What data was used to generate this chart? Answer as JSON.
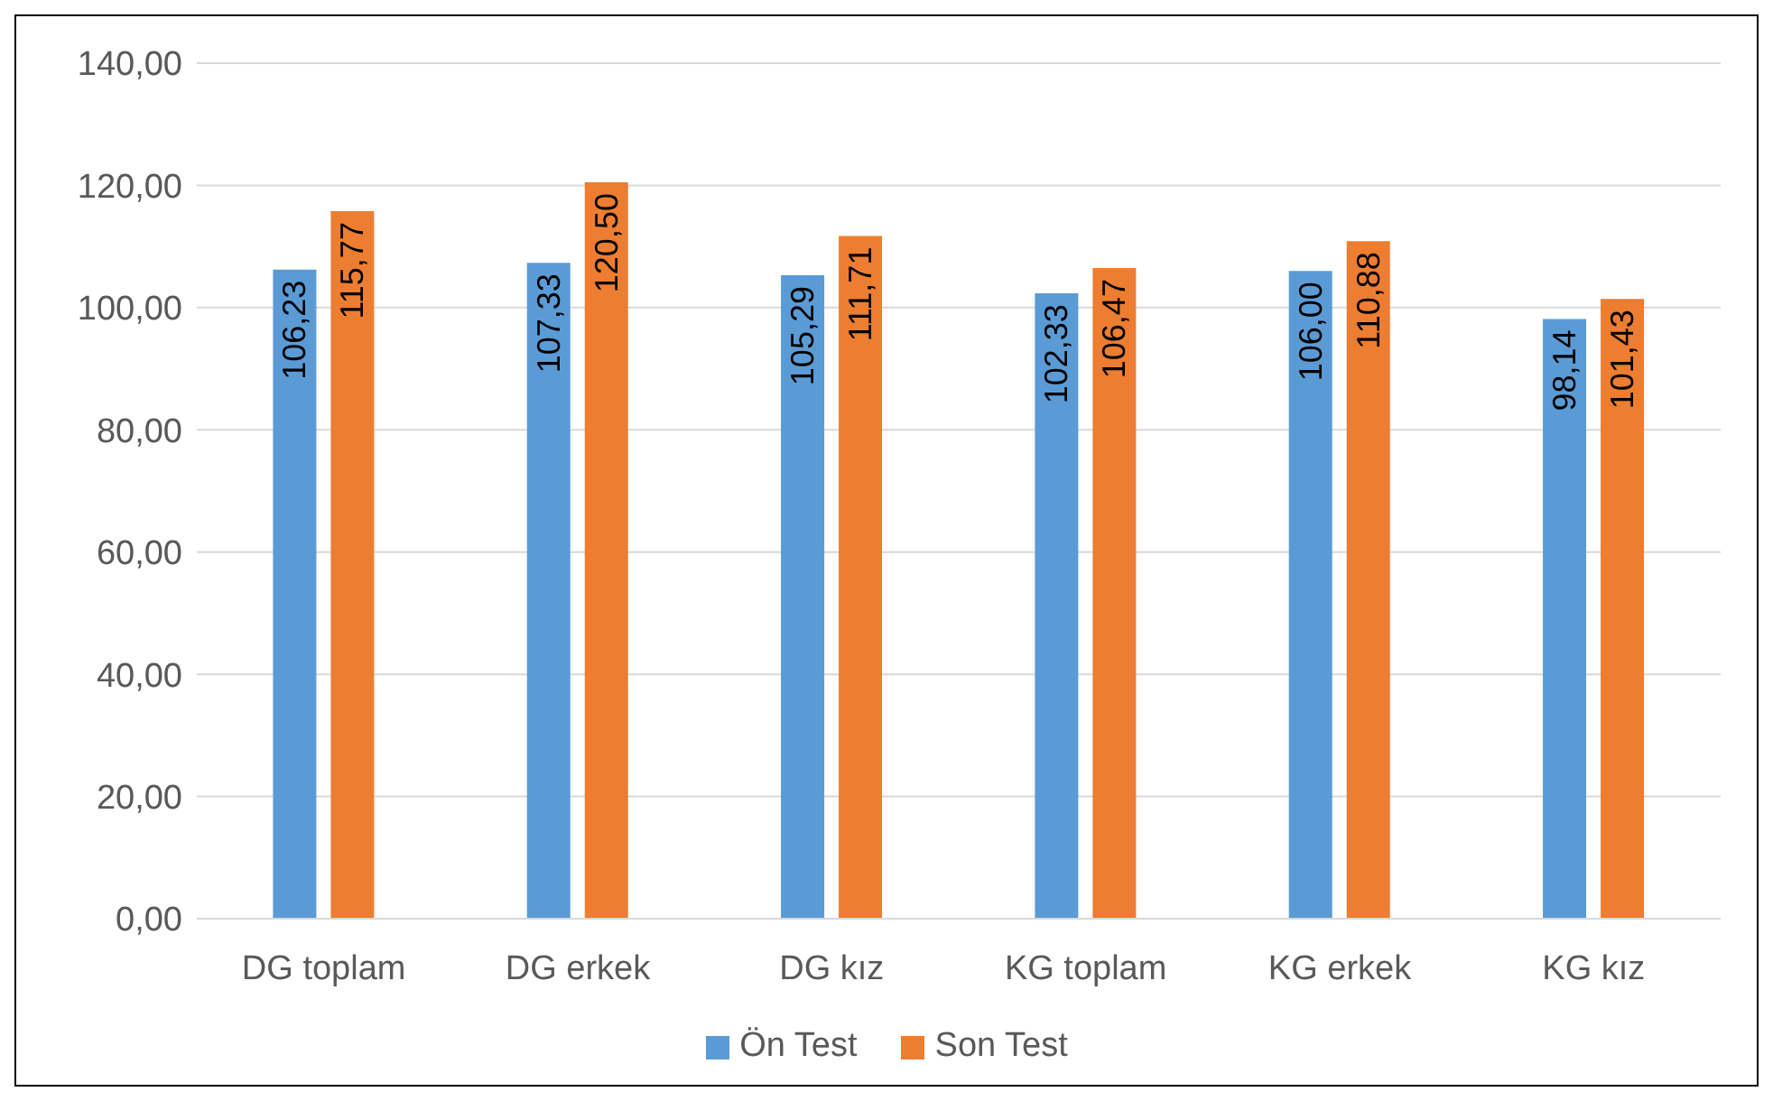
{
  "chart_data": {
    "type": "bar",
    "categories": [
      "DG toplam",
      "DG erkek",
      "DG kız",
      "KG toplam",
      "KG erkek",
      "KG kız"
    ],
    "series": [
      {
        "name": "Ön Test",
        "color": "#5b9bd5",
        "values": [
          106.23,
          107.33,
          105.29,
          102.33,
          106.0,
          98.14
        ],
        "value_labels": [
          "106,23",
          "107,33",
          "105,29",
          "102,33",
          "106,00",
          "98,14"
        ]
      },
      {
        "name": "Son Test",
        "color": "#ed7d31",
        "values": [
          115.77,
          120.5,
          111.71,
          106.47,
          110.88,
          101.43
        ],
        "value_labels": [
          "115,77",
          "120,50",
          "111,71",
          "106,47",
          "110,88",
          "101,43"
        ]
      }
    ],
    "ylim": [
      0,
      140
    ],
    "yticks": [
      {
        "value": 0,
        "label": "0,00"
      },
      {
        "value": 20,
        "label": "20,00"
      },
      {
        "value": 40,
        "label": "40,00"
      },
      {
        "value": 60,
        "label": "60,00"
      },
      {
        "value": 80,
        "label": "80,00"
      },
      {
        "value": 100,
        "label": "100,00"
      },
      {
        "value": 120,
        "label": "120,00"
      },
      {
        "value": 140,
        "label": "140,00"
      }
    ],
    "grid": "y",
    "legend": "bottom"
  }
}
